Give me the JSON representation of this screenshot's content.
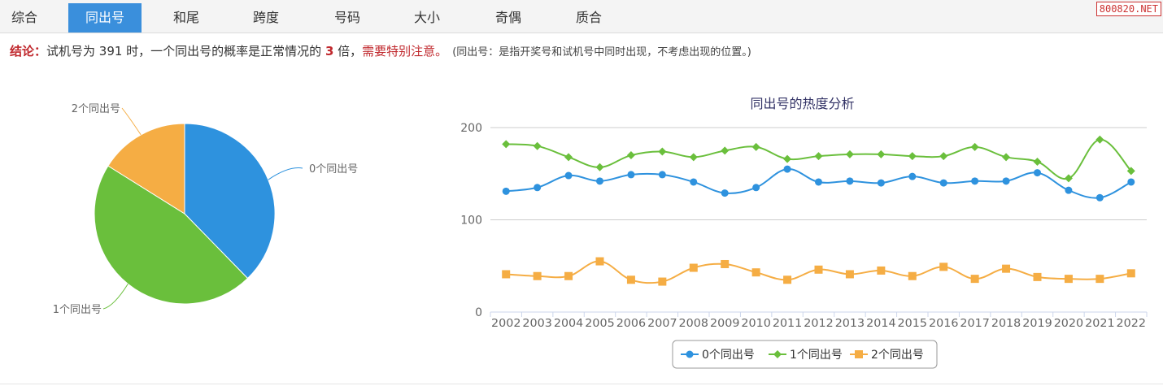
{
  "nav": {
    "tabs": [
      {
        "label": "综合",
        "active": false
      },
      {
        "label": "同出号",
        "active": true
      },
      {
        "label": "和尾",
        "active": false
      },
      {
        "label": "跨度",
        "active": false
      },
      {
        "label": "号码",
        "active": false
      },
      {
        "label": "大小",
        "active": false
      },
      {
        "label": "奇偶",
        "active": false
      },
      {
        "label": "质合",
        "active": false
      }
    ],
    "site_badge": "800820.NET"
  },
  "conclusion": {
    "label": "结论：",
    "text1": "试机号为 391 时，一个同出号的概率是正常情况的 ",
    "multiple": "3",
    "text2": " 倍，",
    "warning": "需要特别注意。",
    "note": "(同出号：是指开奖号和试机号中同时出现，不考虑出现的位置。)"
  },
  "colors": {
    "blue": "#2e92de",
    "green": "#6abf3c",
    "orange": "#f5ad44",
    "grid": "#cccccc",
    "axis": "#ccd6eb",
    "text": "#666666",
    "title": "#333333"
  },
  "chart_data": [
    {
      "type": "pie",
      "slices": [
        {
          "label": "0个同出号",
          "value": 37.7
        },
        {
          "label": "1个同出号",
          "value": 46.2
        },
        {
          "label": "2个同出号",
          "value": 16.1
        }
      ]
    },
    {
      "type": "line",
      "title": "同出号的热度分析",
      "categories": [
        "2002",
        "2003",
        "2004",
        "2005",
        "2006",
        "2007",
        "2008",
        "2009",
        "2010",
        "2011",
        "2012",
        "2013",
        "2014",
        "2015",
        "2016",
        "2017",
        "2018",
        "2019",
        "2020",
        "2021",
        "2022"
      ],
      "y_ticks": [
        0,
        100,
        200
      ],
      "ylim": [
        0,
        200
      ],
      "grid": true,
      "legend_position": "bottom-center",
      "series": [
        {
          "name": "0个同出号",
          "marker": "circle",
          "values": [
            131,
            135,
            148,
            142,
            149,
            149,
            141,
            129,
            135,
            155,
            141,
            142,
            140,
            147,
            140,
            142,
            142,
            151,
            132,
            124,
            141
          ]
        },
        {
          "name": "1个同出号",
          "marker": "diamond",
          "values": [
            182,
            180,
            168,
            157,
            170,
            174,
            168,
            175,
            179,
            166,
            169,
            171,
            171,
            169,
            169,
            179,
            168,
            163,
            145,
            187,
            153
          ]
        },
        {
          "name": "2个同出号",
          "marker": "square",
          "values": [
            41,
            39,
            39,
            55,
            35,
            33,
            48,
            52,
            43,
            35,
            46,
            41,
            45,
            39,
            49,
            36,
            47,
            38,
            36,
            36,
            42
          ]
        }
      ]
    }
  ]
}
